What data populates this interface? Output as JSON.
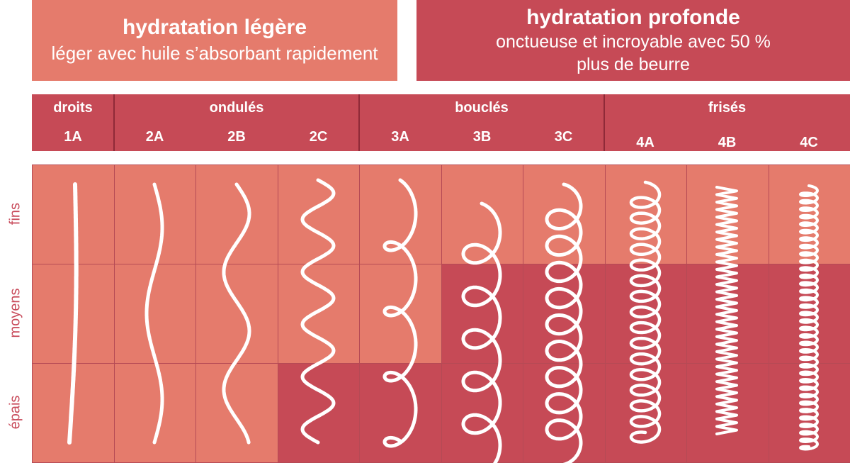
{
  "colors": {
    "light": "#e57b6c",
    "deep": "#c64a56",
    "header_bg": "#c64a56",
    "curve": "#ffffff",
    "row_label": "#c84a5a"
  },
  "boxes": {
    "light": {
      "title": "hydratation légère",
      "subtitle": "léger avec huile s’absorbant rapidement"
    },
    "deep": {
      "title": "hydratation profonde",
      "subtitle_line1": "onctueuse et incroyable avec 50 %",
      "subtitle_line2": "plus de beurre"
    }
  },
  "groups": [
    {
      "label": "droits"
    },
    {
      "label": "ondulés"
    },
    {
      "label": "bouclés"
    },
    {
      "label": "frisés"
    }
  ],
  "types": [
    "1A",
    "2A",
    "2B",
    "2C",
    "3A",
    "3B",
    "3C",
    "4A",
    "4B",
    "4C"
  ],
  "rows": [
    {
      "label": "fins"
    },
    {
      "label": "moyens"
    },
    {
      "label": "épais"
    }
  ],
  "cell_colors": [
    [
      "light",
      "light",
      "light",
      "light",
      "light",
      "light",
      "light",
      "light",
      "light",
      "light"
    ],
    [
      "light",
      "light",
      "light",
      "light",
      "light",
      "deep",
      "deep",
      "deep",
      "deep",
      "deep"
    ],
    [
      "light",
      "light",
      "light",
      "deep",
      "deep",
      "deep",
      "deep",
      "deep",
      "deep",
      "deep"
    ]
  ],
  "curve_icons": [
    "straight-hair-icon",
    "wavy-hair-icon",
    "wavy-hair-icon",
    "wavy-hair-icon",
    "curly-hair-icon",
    "curly-hair-icon",
    "curly-hair-icon",
    "coily-hair-icon",
    "zigzag-hair-icon",
    "tight-coil-hair-icon"
  ]
}
